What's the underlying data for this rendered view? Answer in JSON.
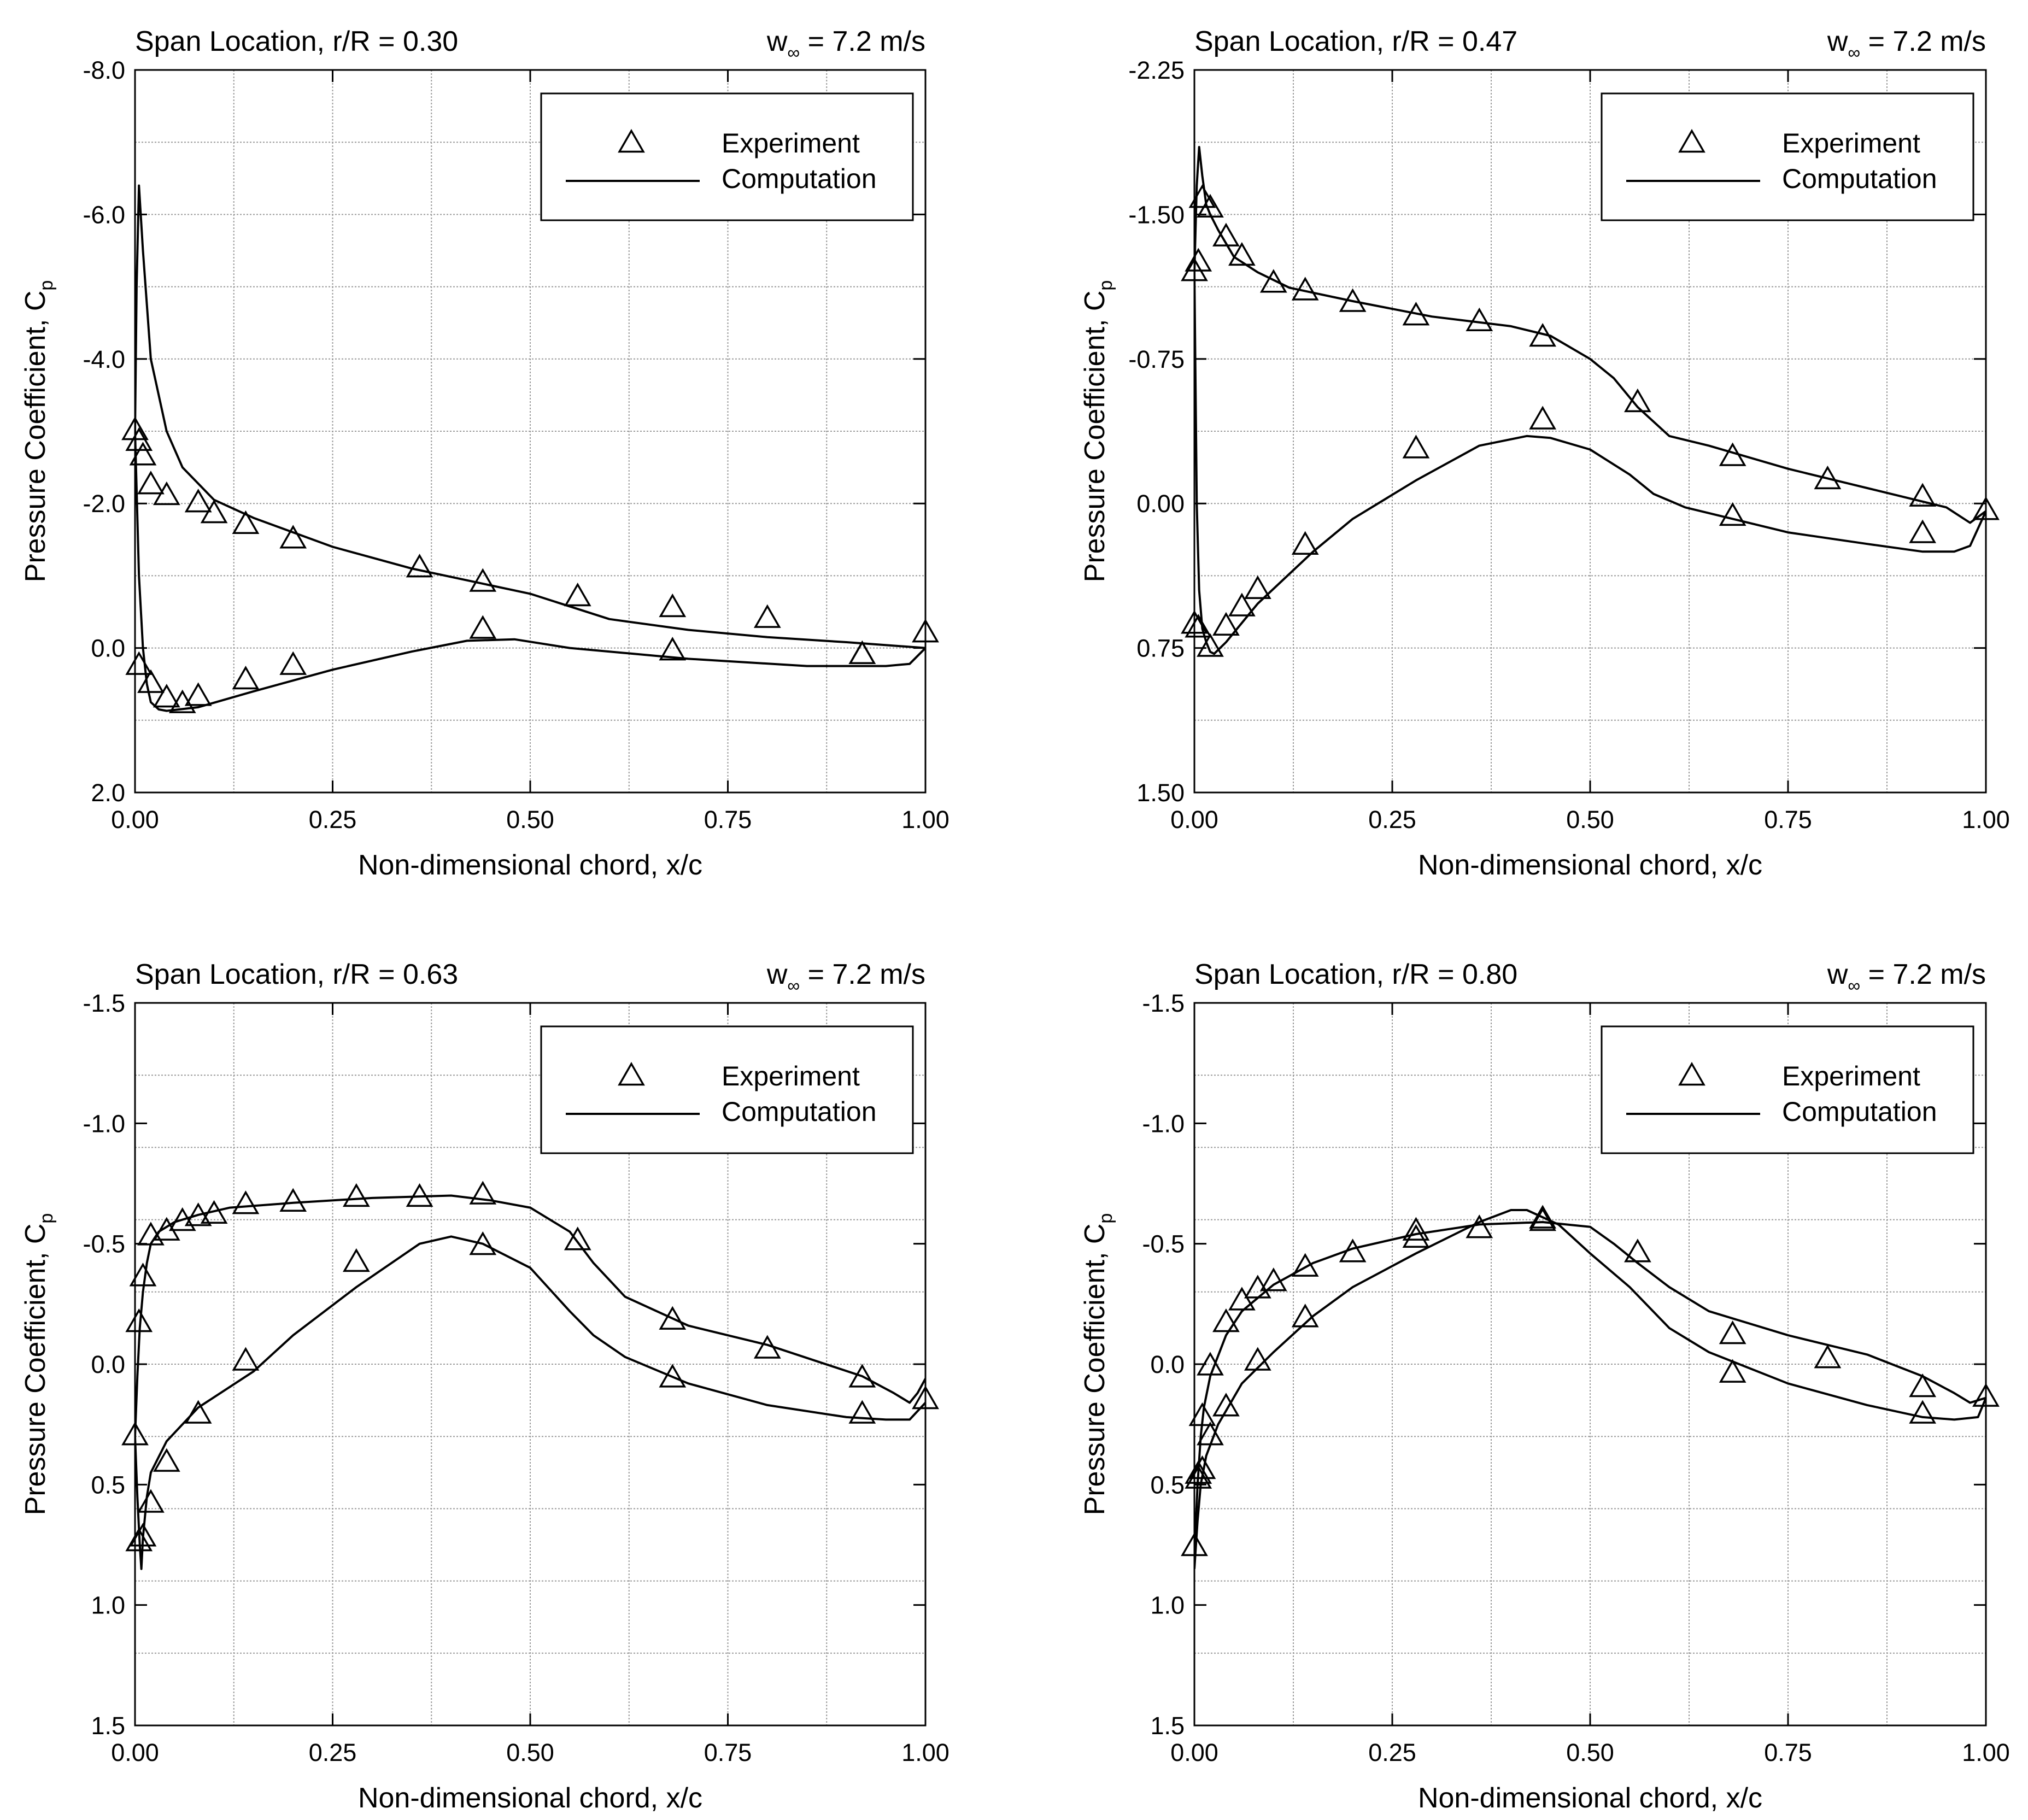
{
  "chart_data": [
    {
      "type": "line",
      "title": "Span Location, r/R = 0.30",
      "subtitle_main": "w",
      "subtitle_sub": "∞",
      "subtitle_rest": " = 7.2 m/s",
      "xlabel": "Non-dimensional chord, x/c",
      "ylabel_main": "Pressure Coefficient, C",
      "ylabel_sub": "p",
      "xlim": [
        0,
        1
      ],
      "ylim": [
        2.0,
        -8.0
      ],
      "x_ticks": [
        0,
        0.25,
        0.5,
        0.75,
        1.0
      ],
      "x_tick_labels": [
        "0.00",
        "0.25",
        "0.50",
        "0.75",
        "1.00"
      ],
      "y_ticks": [
        -8,
        -6,
        -4,
        -2,
        0,
        2
      ],
      "y_tick_labels": [
        "-8.0",
        "-6.0",
        "-4.0",
        "-2.0",
        "0.0",
        "2.0"
      ],
      "grid": true,
      "inverted_y": true,
      "legend": {
        "placement": "top-right",
        "experiment": "Experiment",
        "computation": "Computation"
      },
      "series": [
        {
          "name": "Experiment",
          "style": "markers",
          "x": [
            0.0,
            0.005,
            0.01,
            0.02,
            0.04,
            0.08,
            0.1,
            0.14,
            0.2,
            0.36,
            0.44,
            0.56,
            0.68,
            0.8,
            0.92,
            1.0,
            0.005,
            0.02,
            0.04,
            0.06,
            0.08,
            0.14,
            0.2,
            0.44,
            0.68,
            0.92
          ],
          "y": [
            -3.0,
            -2.85,
            -2.65,
            -2.25,
            -2.1,
            -2.0,
            -1.85,
            -1.7,
            -1.5,
            -1.1,
            -0.9,
            -0.7,
            -0.55,
            -0.4,
            0.1,
            -0.2,
            0.25,
            0.5,
            0.7,
            0.78,
            0.68,
            0.45,
            0.25,
            -0.25,
            0.05,
            0.1
          ]
        },
        {
          "name": "Computation",
          "style": "line",
          "x": [
            0.0,
            0.002,
            0.005,
            0.01,
            0.02,
            0.04,
            0.06,
            0.1,
            0.15,
            0.25,
            0.35,
            0.5,
            0.6,
            0.7,
            0.8,
            0.9,
            1.0
          ],
          "y": [
            -3.0,
            -5.0,
            -6.4,
            -5.5,
            -4.0,
            -3.0,
            -2.5,
            -2.05,
            -1.8,
            -1.4,
            -1.1,
            -0.75,
            -0.4,
            -0.25,
            -0.15,
            -0.08,
            0.0
          ]
        },
        {
          "name": "Computation",
          "style": "line",
          "x": [
            0.0,
            0.005,
            0.01,
            0.015,
            0.02,
            0.03,
            0.04,
            0.08,
            0.15,
            0.25,
            0.35,
            0.42,
            0.48,
            0.55,
            0.7,
            0.85,
            0.95,
            0.98,
            1.0
          ],
          "y": [
            -3.0,
            -1.0,
            0.0,
            0.5,
            0.75,
            0.85,
            0.87,
            0.82,
            0.6,
            0.3,
            0.05,
            -0.1,
            -0.12,
            0.0,
            0.15,
            0.25,
            0.25,
            0.22,
            0.0
          ]
        }
      ]
    },
    {
      "type": "line",
      "title": "Span Location, r/R = 0.47",
      "subtitle_main": "w",
      "subtitle_sub": "∞",
      "subtitle_rest": " = 7.2 m/s",
      "xlabel": "Non-dimensional chord, x/c",
      "ylabel_main": "Pressure Coefficient, C",
      "ylabel_sub": "p",
      "xlim": [
        0,
        1
      ],
      "ylim": [
        1.5,
        -2.25
      ],
      "x_ticks": [
        0,
        0.25,
        0.5,
        0.75,
        1.0
      ],
      "x_tick_labels": [
        "0.00",
        "0.25",
        "0.50",
        "0.75",
        "1.00"
      ],
      "y_ticks": [
        -2.25,
        -1.5,
        -0.75,
        0,
        0.75,
        1.5
      ],
      "y_tick_labels": [
        "-2.25",
        "-1.50",
        "-0.75",
        "0.00",
        "0.75",
        "1.50"
      ],
      "grid": true,
      "inverted_y": true,
      "legend": {
        "placement": "top-right",
        "experiment": "Experiment",
        "computation": "Computation"
      },
      "series": [
        {
          "name": "Experiment",
          "style": "markers",
          "x": [
            0.0,
            0.005,
            0.01,
            0.02,
            0.04,
            0.06,
            0.1,
            0.14,
            0.2,
            0.28,
            0.36,
            0.44,
            0.56,
            0.68,
            0.8,
            0.92,
            1.0,
            0.0,
            0.005,
            0.02,
            0.04,
            0.06,
            0.08,
            0.14,
            0.28,
            0.44,
            0.68,
            0.92
          ],
          "y": [
            -1.2,
            -1.25,
            -1.58,
            -1.53,
            -1.38,
            -1.28,
            -1.14,
            -1.1,
            -1.04,
            -0.97,
            -0.94,
            -0.86,
            -0.52,
            -0.24,
            -0.12,
            -0.03,
            0.04,
            0.63,
            0.65,
            0.75,
            0.64,
            0.54,
            0.45,
            0.22,
            -0.28,
            -0.43,
            0.07,
            0.16
          ]
        },
        {
          "name": "Computation",
          "style": "line",
          "x": [
            0.0,
            0.003,
            0.006,
            0.01,
            0.015,
            0.02,
            0.03,
            0.05,
            0.08,
            0.12,
            0.2,
            0.3,
            0.4,
            0.45,
            0.5,
            0.53,
            0.56,
            0.6,
            0.65,
            0.75,
            0.85,
            0.95,
            0.98,
            1.0
          ],
          "y": [
            -1.2,
            -1.65,
            -1.85,
            -1.7,
            -1.55,
            -1.5,
            -1.42,
            -1.28,
            -1.2,
            -1.12,
            -1.05,
            -0.97,
            -0.92,
            -0.87,
            -0.75,
            -0.65,
            -0.5,
            -0.35,
            -0.3,
            -0.18,
            -0.08,
            0.02,
            0.1,
            0.04
          ]
        },
        {
          "name": "Computation",
          "style": "line",
          "x": [
            0.0,
            0.003,
            0.006,
            0.01,
            0.015,
            0.02,
            0.025,
            0.04,
            0.08,
            0.15,
            0.2,
            0.28,
            0.36,
            0.42,
            0.45,
            0.5,
            0.55,
            0.58,
            0.62,
            0.75,
            0.85,
            0.92,
            0.96,
            0.98,
            1.0
          ],
          "y": [
            -1.2,
            0.0,
            0.45,
            0.65,
            0.72,
            0.77,
            0.78,
            0.72,
            0.52,
            0.25,
            0.08,
            -0.12,
            -0.3,
            -0.35,
            -0.34,
            -0.28,
            -0.15,
            -0.05,
            0.02,
            0.15,
            0.21,
            0.25,
            0.25,
            0.22,
            0.04
          ]
        }
      ]
    },
    {
      "type": "line",
      "title": "Span Location, r/R = 0.63",
      "subtitle_main": "w",
      "subtitle_sub": "∞",
      "subtitle_rest": " = 7.2 m/s",
      "xlabel": "Non-dimensional chord, x/c",
      "ylabel_main": "Pressure Coefficient, C",
      "ylabel_sub": "p",
      "xlim": [
        0,
        1
      ],
      "ylim": [
        1.5,
        -1.5
      ],
      "x_ticks": [
        0,
        0.25,
        0.5,
        0.75,
        1.0
      ],
      "x_tick_labels": [
        "0.00",
        "0.25",
        "0.50",
        "0.75",
        "1.00"
      ],
      "y_ticks": [
        -1.5,
        -1.0,
        -0.5,
        0,
        0.5,
        1.0,
        1.5
      ],
      "y_tick_labels": [
        "-1.5",
        "-1.0",
        "-0.5",
        "0.0",
        "0.5",
        "1.0",
        "1.5"
      ],
      "grid": true,
      "inverted_y": true,
      "legend": {
        "placement": "top-right",
        "experiment": "Experiment",
        "computation": "Computation"
      },
      "series": [
        {
          "name": "Experiment",
          "style": "markers",
          "x": [
            0.005,
            0.01,
            0.02,
            0.04,
            0.06,
            0.08,
            0.1,
            0.14,
            0.2,
            0.28,
            0.36,
            0.44,
            0.56,
            0.68,
            0.8,
            0.92,
            1.0,
            0.0,
            0.005,
            0.01,
            0.02,
            0.04,
            0.08,
            0.14,
            0.28,
            0.44,
            0.68,
            0.92
          ],
          "y": [
            -0.17,
            -0.36,
            -0.53,
            -0.55,
            -0.59,
            -0.61,
            -0.62,
            -0.66,
            -0.67,
            -0.69,
            -0.69,
            -0.7,
            -0.51,
            -0.18,
            -0.06,
            0.06,
            0.15,
            0.3,
            0.74,
            0.72,
            0.58,
            0.41,
            0.21,
            -0.01,
            -0.42,
            -0.49,
            0.06,
            0.21
          ]
        },
        {
          "name": "Computation",
          "style": "line",
          "x": [
            0.0,
            0.003,
            0.006,
            0.01,
            0.015,
            0.02,
            0.03,
            0.05,
            0.08,
            0.12,
            0.2,
            0.3,
            0.4,
            0.45,
            0.5,
            0.55,
            0.58,
            0.62,
            0.7,
            0.8,
            0.92,
            0.96,
            0.98,
            0.99,
            1.0
          ],
          "y": [
            0.3,
            0.05,
            -0.15,
            -0.3,
            -0.42,
            -0.5,
            -0.55,
            -0.59,
            -0.62,
            -0.65,
            -0.67,
            -0.69,
            -0.7,
            -0.68,
            -0.65,
            -0.55,
            -0.42,
            -0.28,
            -0.16,
            -0.08,
            0.05,
            0.12,
            0.16,
            0.12,
            0.06
          ]
        },
        {
          "name": "Computation",
          "style": "line",
          "x": [
            0.0,
            0.003,
            0.006,
            0.008,
            0.01,
            0.015,
            0.02,
            0.04,
            0.08,
            0.15,
            0.2,
            0.28,
            0.36,
            0.4,
            0.44,
            0.5,
            0.55,
            0.58,
            0.62,
            0.7,
            0.8,
            0.9,
            0.95,
            0.98,
            1.0
          ],
          "y": [
            0.3,
            0.55,
            0.75,
            0.85,
            0.72,
            0.55,
            0.45,
            0.32,
            0.18,
            0.03,
            -0.12,
            -0.32,
            -0.5,
            -0.53,
            -0.5,
            -0.4,
            -0.22,
            -0.12,
            -0.03,
            0.08,
            0.17,
            0.22,
            0.23,
            0.23,
            0.16
          ]
        }
      ]
    },
    {
      "type": "line",
      "title": "Span Location, r/R = 0.80",
      "subtitle_main": "w",
      "subtitle_sub": "∞",
      "subtitle_rest": " = 7.2 m/s",
      "xlabel": "Non-dimensional chord, x/c",
      "ylabel_main": "Pressure Coefficient, C",
      "ylabel_sub": "p",
      "xlim": [
        0,
        1
      ],
      "ylim": [
        1.5,
        -1.5
      ],
      "x_ticks": [
        0,
        0.25,
        0.5,
        0.75,
        1.0
      ],
      "x_tick_labels": [
        "0.00",
        "0.25",
        "0.50",
        "0.75",
        "1.00"
      ],
      "y_ticks": [
        -1.5,
        -1.0,
        -0.5,
        0,
        0.5,
        1.0,
        1.5
      ],
      "y_tick_labels": [
        "-1.5",
        "-1.0",
        "-0.5",
        "0.0",
        "0.5",
        "1.0",
        "1.5"
      ],
      "grid": true,
      "inverted_y": true,
      "legend": {
        "placement": "top-right",
        "experiment": "Experiment",
        "computation": "Computation"
      },
      "series": [
        {
          "name": "Experiment",
          "style": "markers",
          "x": [
            0.005,
            0.01,
            0.02,
            0.04,
            0.06,
            0.08,
            0.1,
            0.14,
            0.2,
            0.28,
            0.36,
            0.44,
            0.56,
            0.68,
            0.8,
            0.92,
            1.0,
            0.0,
            0.005,
            0.01,
            0.02,
            0.04,
            0.08,
            0.14,
            0.28,
            0.44,
            0.68,
            0.92
          ],
          "y": [
            0.46,
            0.22,
            0.01,
            -0.17,
            -0.26,
            -0.31,
            -0.34,
            -0.4,
            -0.46,
            -0.55,
            -0.56,
            -0.59,
            -0.46,
            -0.12,
            -0.02,
            0.1,
            0.14,
            0.76,
            0.48,
            0.44,
            0.3,
            0.18,
            -0.01,
            -0.19,
            -0.52,
            -0.6,
            0.04,
            0.21
          ]
        },
        {
          "name": "Computation",
          "style": "line",
          "x": [
            0.0,
            0.004,
            0.008,
            0.012,
            0.02,
            0.04,
            0.06,
            0.1,
            0.15,
            0.2,
            0.28,
            0.36,
            0.44,
            0.5,
            0.53,
            0.56,
            0.6,
            0.65,
            0.75,
            0.85,
            0.92,
            0.96,
            0.98,
            0.99,
            1.0
          ],
          "y": [
            0.8,
            0.5,
            0.3,
            0.18,
            0.05,
            -0.12,
            -0.22,
            -0.33,
            -0.42,
            -0.48,
            -0.54,
            -0.58,
            -0.59,
            -0.57,
            -0.5,
            -0.42,
            -0.32,
            -0.22,
            -0.12,
            -0.04,
            0.05,
            0.12,
            0.16,
            0.15,
            0.14
          ]
        },
        {
          "name": "Computation",
          "style": "line",
          "x": [
            0.0,
            0.004,
            0.008,
            0.015,
            0.03,
            0.06,
            0.1,
            0.15,
            0.2,
            0.28,
            0.36,
            0.4,
            0.42,
            0.46,
            0.5,
            0.55,
            0.6,
            0.65,
            0.75,
            0.85,
            0.92,
            0.96,
            0.99,
            1.0
          ],
          "y": [
            0.85,
            0.65,
            0.5,
            0.38,
            0.25,
            0.08,
            -0.05,
            -0.2,
            -0.32,
            -0.46,
            -0.59,
            -0.64,
            -0.64,
            -0.58,
            -0.46,
            -0.32,
            -0.15,
            -0.05,
            0.08,
            0.17,
            0.22,
            0.23,
            0.22,
            0.14
          ]
        }
      ]
    }
  ]
}
